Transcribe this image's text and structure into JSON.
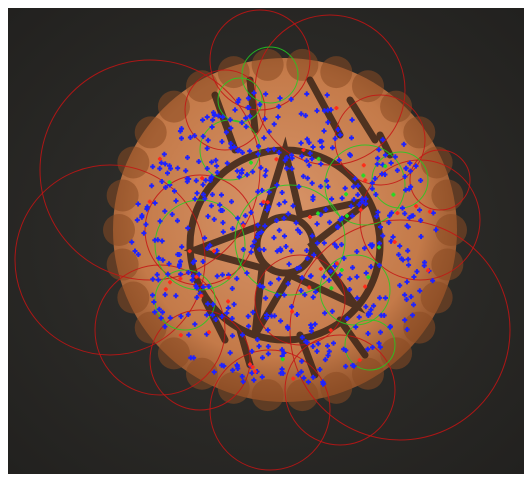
{
  "scene": {
    "background_color": "#2c2b29",
    "cookie_color": "#c9804f",
    "cookie_rim_color": "#8a4a22",
    "emboss_color": "#3a2418",
    "keypoint_blue": "#1e22ff",
    "keypoint_red": "#ff2a1a",
    "keypoint_green": "#22dd22",
    "circle_red": "#c41414",
    "circle_green": "#22cc22"
  }
}
